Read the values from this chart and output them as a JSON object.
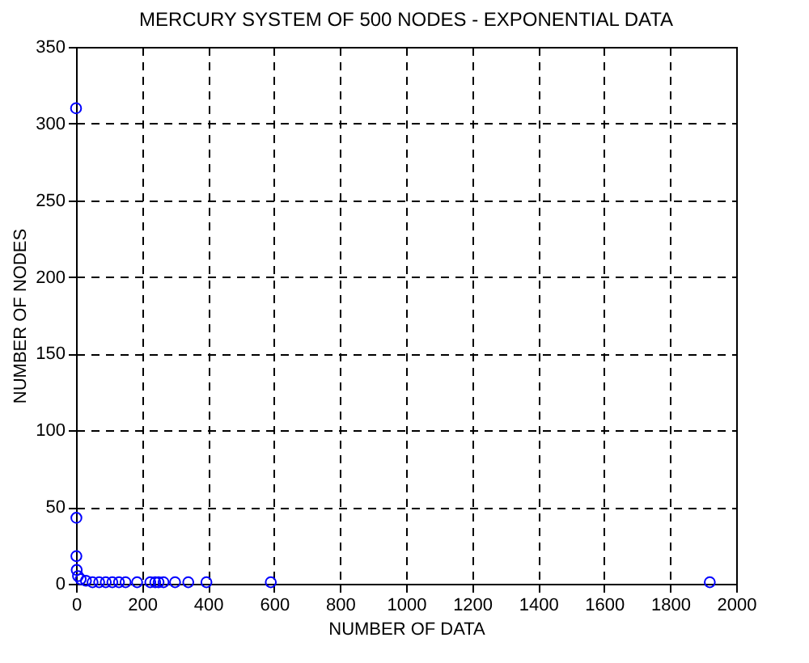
{
  "chart_data": {
    "type": "scatter",
    "title": "MERCURY SYSTEM OF 500 NODES - EXPONENTIAL DATA",
    "xlabel": "NUMBER OF DATA",
    "ylabel": "NUMBER OF NODES",
    "x": [
      0,
      1,
      1,
      2,
      6,
      14,
      30,
      50,
      70,
      90,
      110,
      130,
      150,
      185,
      225,
      240,
      250,
      265,
      300,
      340,
      395,
      590,
      1920
    ],
    "series": [
      {
        "color": "#0000ff",
        "values": [
          310,
          43,
          18,
          9,
          5,
          3,
          2,
          1,
          1,
          1,
          1,
          1,
          1,
          1,
          1,
          1,
          1,
          1,
          1,
          1,
          1,
          1,
          1
        ]
      }
    ],
    "xlim": [
      0,
      2000
    ],
    "ylim": [
      0,
      350
    ],
    "xticks": [
      0,
      200,
      400,
      600,
      800,
      1000,
      1200,
      1400,
      1600,
      1800,
      2000
    ],
    "yticks": [
      0,
      50,
      100,
      150,
      200,
      250,
      300,
      350
    ],
    "grid": true,
    "marker": "circle"
  }
}
